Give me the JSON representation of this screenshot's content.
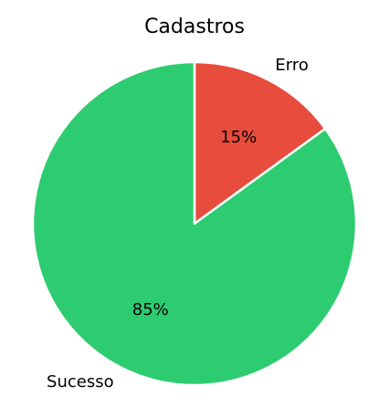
{
  "chart_data": {
    "type": "pie",
    "title": "Cadastros",
    "slices": [
      {
        "label": "Erro",
        "value": 15,
        "pct_label": "15%",
        "color": "#e74c3c"
      },
      {
        "label": "Sucesso",
        "value": 85,
        "pct_label": "85%",
        "color": "#2ecc71"
      }
    ],
    "start_angle_deg": 90,
    "direction": "clockwise",
    "legend": "none"
  }
}
